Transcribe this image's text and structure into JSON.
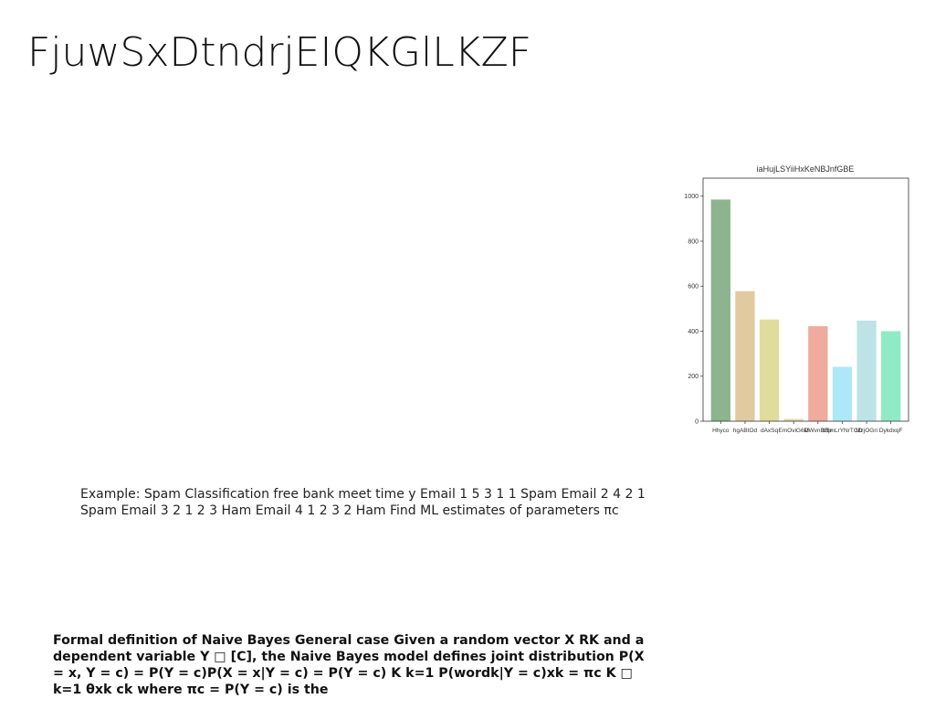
{
  "slide": {
    "title": "FjuwSxDtndrjEIQKGlLKZF",
    "example_text": "Example: Spam Classification free bank meet time y Email 1 5 3 1 1 Spam Email 2 4 2 1 Spam Email 3 2 1 2 3 Ham Email 4 1 2 3 2 Ham Find ML estimates of parameters πc",
    "definition_text": "Formal definition of Naive Bayes General case Given a random vector X RK and a dependent variable Y □ [C], the Naive Bayes model defines joint distribution P(X = x, Y = c) = P(Y = c)P(X = x|Y = c) = P(Y = c) K k=1 P(wordk|Y = c)xk = πc K □ k=1 θxk ck where πc = P(Y = c) is the"
  },
  "chart_data": {
    "type": "bar",
    "title": "iaHujLSYiiHxKeNBJnfGBE",
    "categories": [
      "Hhyco",
      "hgABtOd",
      "dAxSq",
      "EmOviG6M",
      "DWvnBBp",
      "bSmLrYNrTCD",
      "MzjOGri",
      "DykdxqF"
    ],
    "values": [
      985,
      578,
      452,
      10,
      422,
      242,
      447,
      400
    ],
    "colors": [
      "#8db48e",
      "#e1c9a0",
      "#e0dc9e",
      "#e0dc9e",
      "#eeab9e",
      "#ade8f8",
      "#bde3e6",
      "#8eebc6"
    ],
    "ylim": [
      0,
      1080
    ],
    "yticks": [
      0,
      200,
      400,
      600,
      800,
      1000
    ],
    "xlabel": "",
    "ylabel": "",
    "grid": false
  }
}
